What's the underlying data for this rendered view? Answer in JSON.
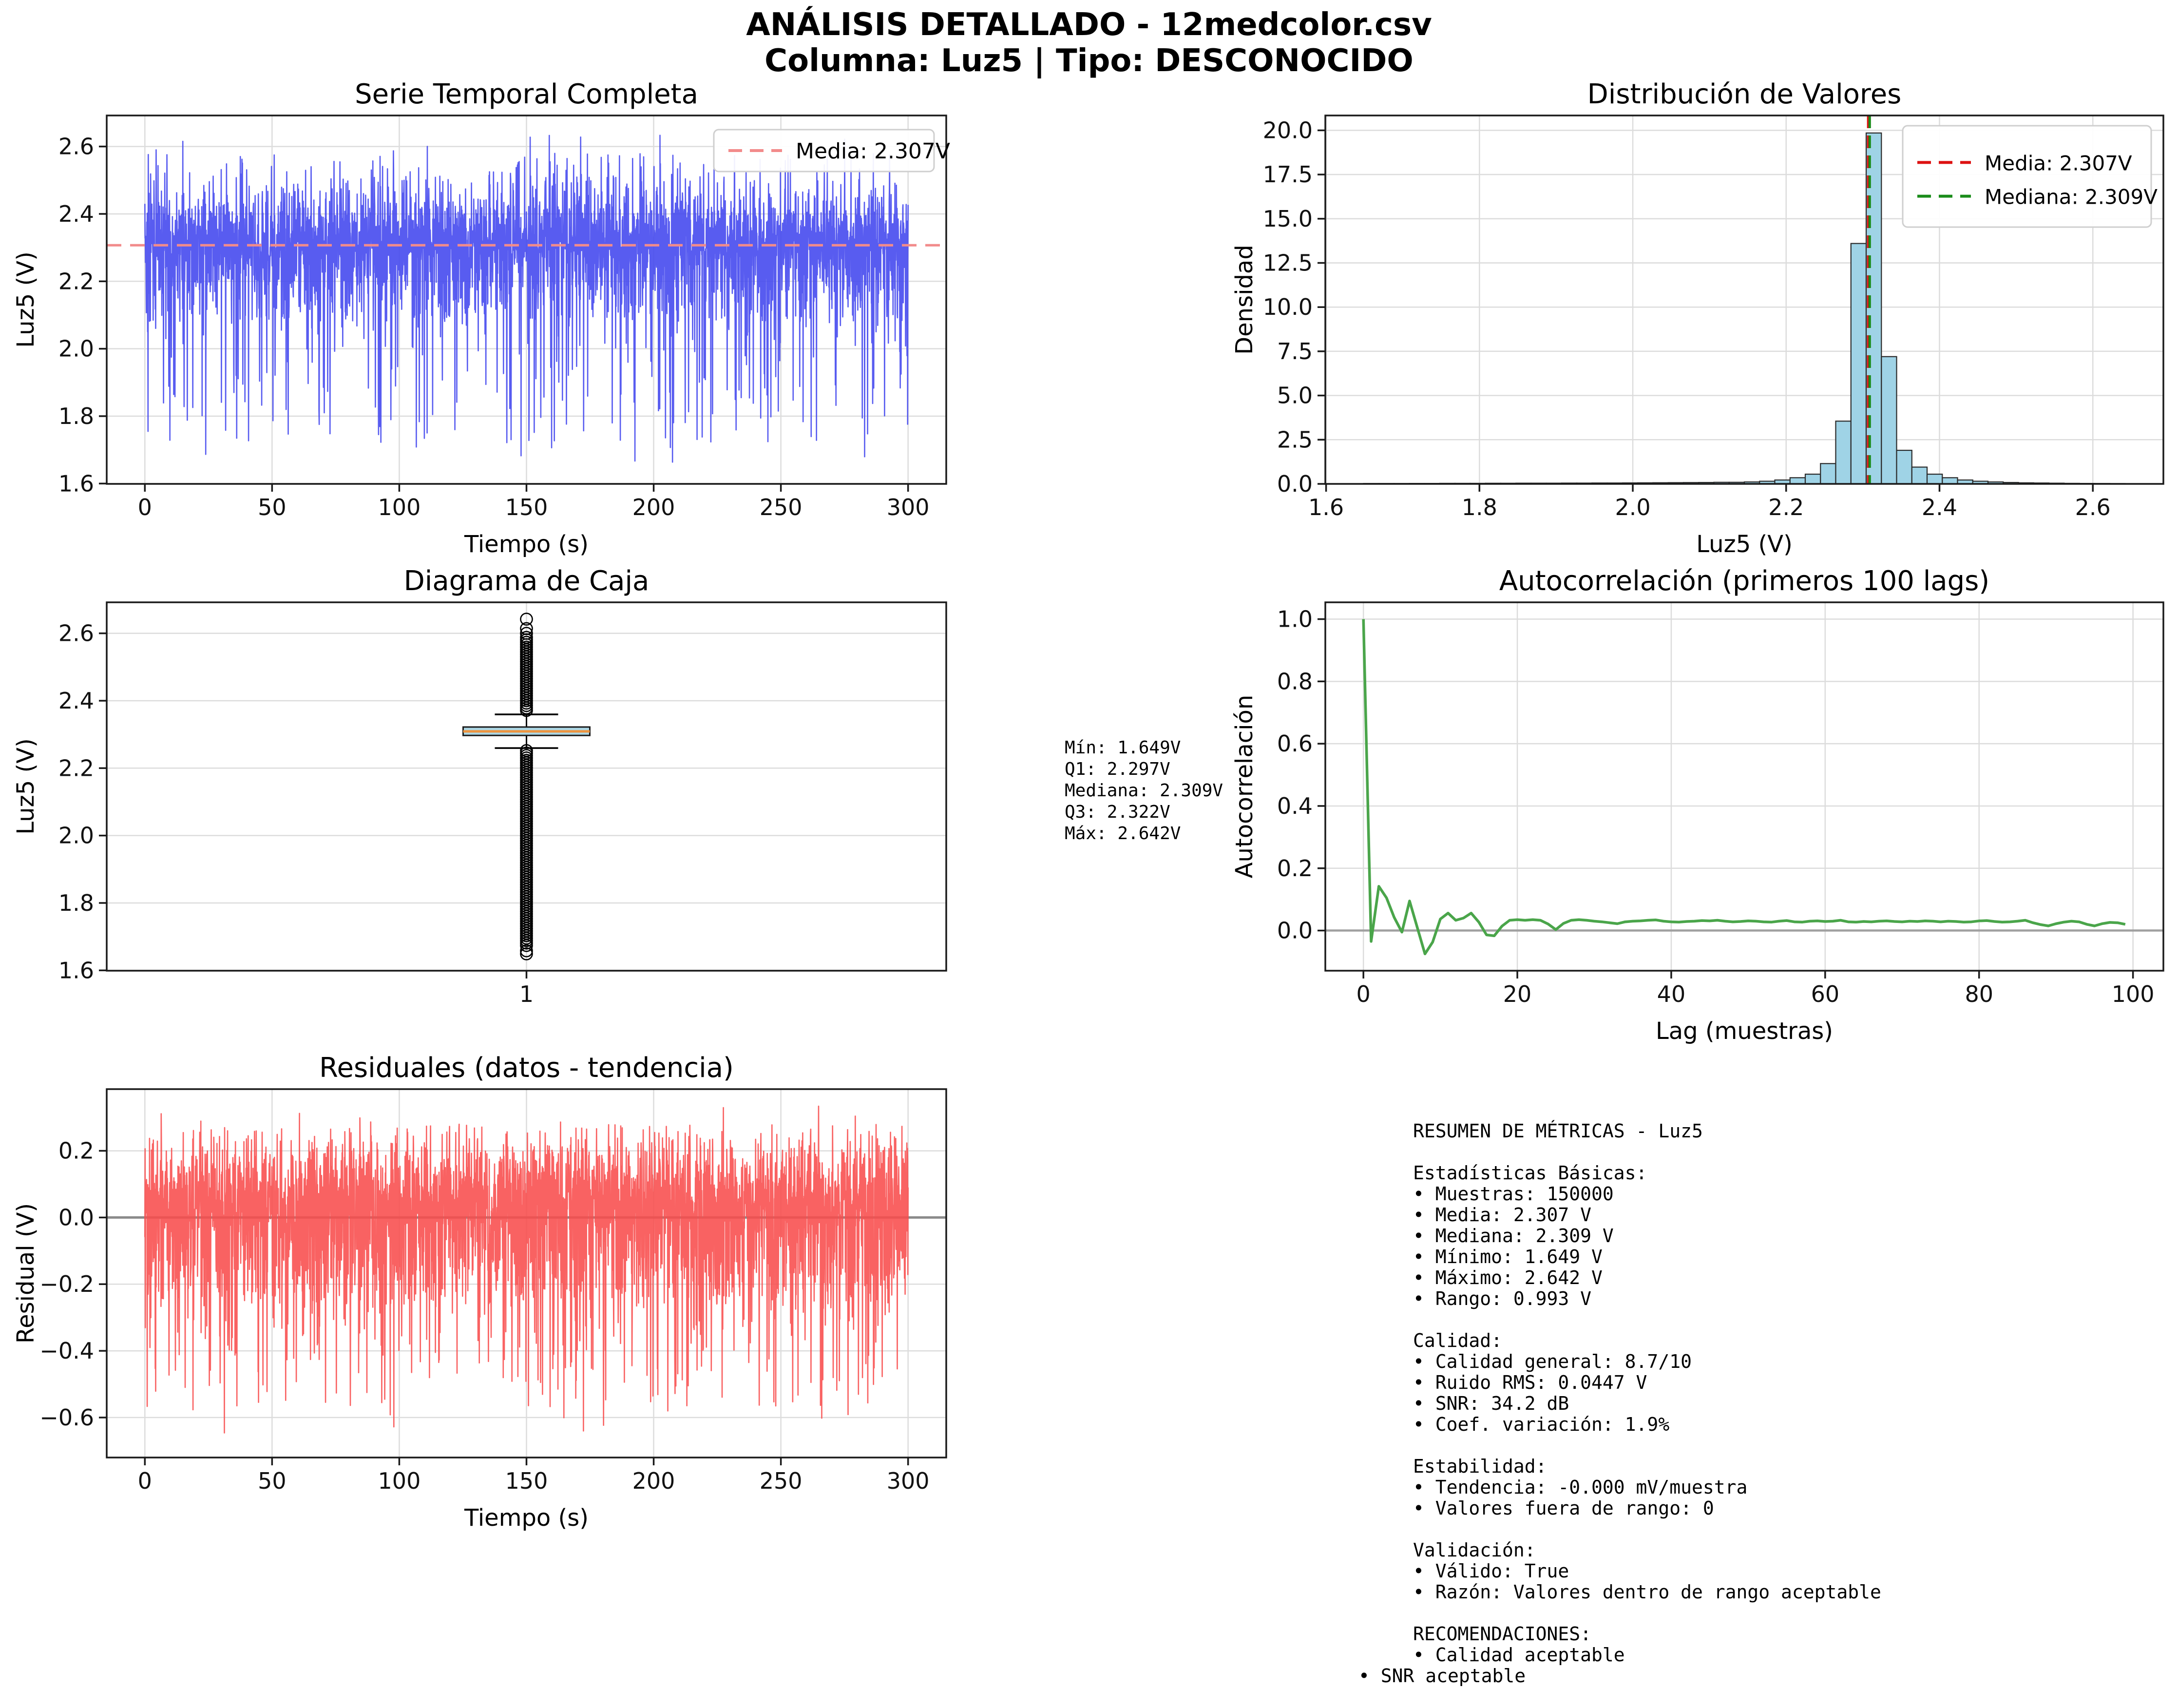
{
  "suptitle": {
    "line1": "ANÁLISIS DETALLADO - 12medcolor.csv",
    "line2": "Columna: Luz5 | Tipo: DESCONOCIDO"
  },
  "palette": {
    "timeseries_blue": "#4145ee",
    "mean_salmon": "#f28b8b",
    "hist_fill": "#9fd3e6",
    "hist_edge": "#2b2b2b",
    "mean_red": "#dd1111",
    "median_green": "#1a8c1a",
    "acf_green": "#4aa54a",
    "residual_red": "#f84c4c",
    "box_fill": "#add8e6",
    "box_median_orange": "#ee9540",
    "zero_gray": "#8a8a8a",
    "grid_gray": "#dcdcdc"
  },
  "chart_data": [
    {
      "id": "timeseries",
      "type": "line",
      "title": "Serie Temporal Completa",
      "xlabel": "Tiempo (s)",
      "ylabel": "Luz5 (V)",
      "xlim": [
        -15,
        315
      ],
      "ylim": [
        1.599,
        2.692
      ],
      "xtick_vals": [
        0,
        50,
        100,
        150,
        200,
        250,
        300
      ],
      "xticks": [
        "0",
        "50",
        "100",
        "150",
        "200",
        "250",
        "300"
      ],
      "ytick_vals": [
        1.6,
        1.8,
        2.0,
        2.2,
        2.4,
        2.6
      ],
      "yticks": [
        "1.6",
        "1.8",
        "2.0",
        "2.2",
        "2.4",
        "2.6"
      ],
      "mean_line": {
        "value": 2.307,
        "label": "Media: 2.307V"
      },
      "signal_summary": {
        "n_samples": 150000,
        "duration_s": 300,
        "mean": 2.307,
        "median": 2.309,
        "min": 1.649,
        "max": 2.642,
        "dense_band": [
          2.2,
          2.46
        ],
        "seed": 7
      }
    },
    {
      "id": "histogram",
      "type": "bar",
      "title": "Distribución de Valores",
      "xlabel": "Luz5 (V)",
      "ylabel": "Densidad",
      "xlim": [
        1.599,
        2.692
      ],
      "ylim": [
        0,
        20.84
      ],
      "xtick_vals": [
        1.6,
        1.8,
        2.0,
        2.2,
        2.4,
        2.6
      ],
      "xticks": [
        "1.6",
        "1.8",
        "2.0",
        "2.2",
        "2.4",
        "2.6"
      ],
      "ytick_vals": [
        0,
        2.5,
        5,
        7.5,
        10,
        12.5,
        15,
        17.5,
        20
      ],
      "yticks": [
        "0.0",
        "2.5",
        "5.0",
        "7.5",
        "10.0",
        "12.5",
        "15.0",
        "17.5",
        "20.0"
      ],
      "bin_start": 1.649,
      "bin_width": 0.01986,
      "densities": [
        0.02,
        0.02,
        0.02,
        0.025,
        0.025,
        0.03,
        0.03,
        0.03,
        0.035,
        0.035,
        0.04,
        0.04,
        0.04,
        0.045,
        0.045,
        0.05,
        0.05,
        0.055,
        0.06,
        0.065,
        0.07,
        0.075,
        0.08,
        0.09,
        0.09,
        0.11,
        0.15,
        0.22,
        0.35,
        0.55,
        1.15,
        3.55,
        13.6,
        19.85,
        7.2,
        1.9,
        0.95,
        0.55,
        0.35,
        0.22,
        0.15,
        0.11,
        0.08,
        0.06,
        0.05,
        0.04,
        0.03,
        0.025,
        0.02,
        0.015
      ],
      "mean_line": {
        "value": 2.307,
        "label": "Media: 2.307V"
      },
      "median_line": {
        "value": 2.309,
        "label": "Mediana: 2.309V"
      }
    },
    {
      "id": "boxplot",
      "type": "box",
      "title": "Diagrama de Caja",
      "ylabel": "Luz5 (V)",
      "xlim": [
        0,
        2
      ],
      "ylim": [
        1.599,
        2.692
      ],
      "xtick_vals": [
        1
      ],
      "xticks": [
        "1"
      ],
      "ytick_vals": [
        1.6,
        1.8,
        2.0,
        2.2,
        2.4,
        2.6
      ],
      "yticks": [
        "1.6",
        "1.8",
        "2.0",
        "2.2",
        "2.4",
        "2.6"
      ],
      "stats": {
        "min": 1.649,
        "q1": 2.297,
        "median": 2.309,
        "q3": 2.322,
        "whisker_low": 2.2595,
        "whisker_high": 2.3595,
        "max": 2.642
      },
      "outliers_upper_range": [
        2.368,
        2.588
      ],
      "outliers_lower_range": [
        1.672,
        2.252
      ],
      "outliers_upper_isolated": [
        2.642,
        2.614,
        2.6
      ],
      "outliers_lower_isolated": [
        1.658,
        1.649
      ]
    },
    {
      "id": "autocorr",
      "type": "line",
      "title": "Autocorrelación (primeros 100 lags)",
      "xlabel": "Lag (muestras)",
      "ylabel": "Autocorrelación",
      "xlim": [
        -4.95,
        103.95
      ],
      "ylim": [
        -0.129,
        1.054
      ],
      "xtick_vals": [
        0,
        20,
        40,
        60,
        80,
        100
      ],
      "xticks": [
        "0",
        "20",
        "40",
        "60",
        "80",
        "100"
      ],
      "ytick_vals": [
        0,
        0.2,
        0.4,
        0.6,
        0.8,
        1.0
      ],
      "yticks": [
        "0.0",
        "0.2",
        "0.4",
        "0.6",
        "0.8",
        "1.0"
      ],
      "zero_line": 0,
      "values": [
        1.0,
        -0.035,
        0.142,
        0.105,
        0.042,
        -0.005,
        0.095,
        0.01,
        -0.075,
        -0.037,
        0.037,
        0.056,
        0.033,
        0.04,
        0.056,
        0.027,
        -0.014,
        -0.017,
        0.014,
        0.033,
        0.035,
        0.033,
        0.035,
        0.033,
        0.021,
        0.003,
        0.023,
        0.033,
        0.035,
        0.033,
        0.03,
        0.028,
        0.025,
        0.022,
        0.028,
        0.03,
        0.031,
        0.033,
        0.034,
        0.03,
        0.028,
        0.027,
        0.029,
        0.03,
        0.032,
        0.031,
        0.033,
        0.03,
        0.028,
        0.029,
        0.031,
        0.03,
        0.028,
        0.027,
        0.03,
        0.032,
        0.028,
        0.027,
        0.03,
        0.031,
        0.029,
        0.03,
        0.033,
        0.028,
        0.027,
        0.029,
        0.028,
        0.03,
        0.031,
        0.029,
        0.028,
        0.03,
        0.029,
        0.031,
        0.03,
        0.028,
        0.03,
        0.029,
        0.027,
        0.028,
        0.031,
        0.032,
        0.029,
        0.027,
        0.028,
        0.03,
        0.033,
        0.025,
        0.019,
        0.015,
        0.022,
        0.027,
        0.03,
        0.028,
        0.02,
        0.015,
        0.022,
        0.026,
        0.025,
        0.02
      ]
    },
    {
      "id": "residuals",
      "type": "line",
      "title": "Residuales (datos - tendencia)",
      "xlabel": "Tiempo (s)",
      "ylabel": "Residual (V)",
      "xlim": [
        -15,
        315
      ],
      "ylim": [
        -0.72,
        0.385
      ],
      "xtick_vals": [
        0,
        50,
        100,
        150,
        200,
        250,
        300
      ],
      "xticks": [
        "0",
        "50",
        "100",
        "150",
        "200",
        "250",
        "300"
      ],
      "ytick_vals": [
        -0.6,
        -0.4,
        -0.2,
        0,
        0.2
      ],
      "yticks": [
        "−0.6",
        "−0.4",
        "−0.2",
        "0.0",
        "0.2"
      ],
      "zero_line": 0,
      "signal_summary": {
        "mean": 0,
        "min": -0.67,
        "max": 0.335,
        "dense_band": [
          -0.2,
          0.2
        ],
        "seed": 13
      }
    }
  ],
  "stats_box": {
    "lines": [
      "Mín: 1.649V",
      "Q1: 2.297V",
      "Mediana: 2.309V",
      "Q3: 2.322V",
      "Máx: 2.642V"
    ]
  },
  "metrics_panel": {
    "lines": [
      "RESUMEN DE MÉTRICAS - Luz5",
      "",
      "Estadísticas Básicas:",
      "• Muestras: 150000",
      "• Media: 2.307 V",
      "• Mediana: 2.309 V",
      "• Mínimo: 1.649 V",
      "• Máximo: 2.642 V",
      "• Rango: 0.993 V",
      "",
      "Calidad:",
      "• Calidad general: 8.7/10",
      "• Ruido RMS: 0.0447 V",
      "• SNR: 34.2 dB",
      "• Coef. variación: 1.9%",
      "",
      "Estabilidad:",
      "• Tendencia: -0.000 mV/muestra",
      "• Valores fuera de rango: 0",
      "",
      "Validación:",
      "• Válido: True",
      "• Razón: Valores dentro de rango aceptable",
      "",
      "RECOMENDACIONES:",
      "• Calidad aceptable"
    ],
    "outdent_line": "• SNR aceptable"
  }
}
